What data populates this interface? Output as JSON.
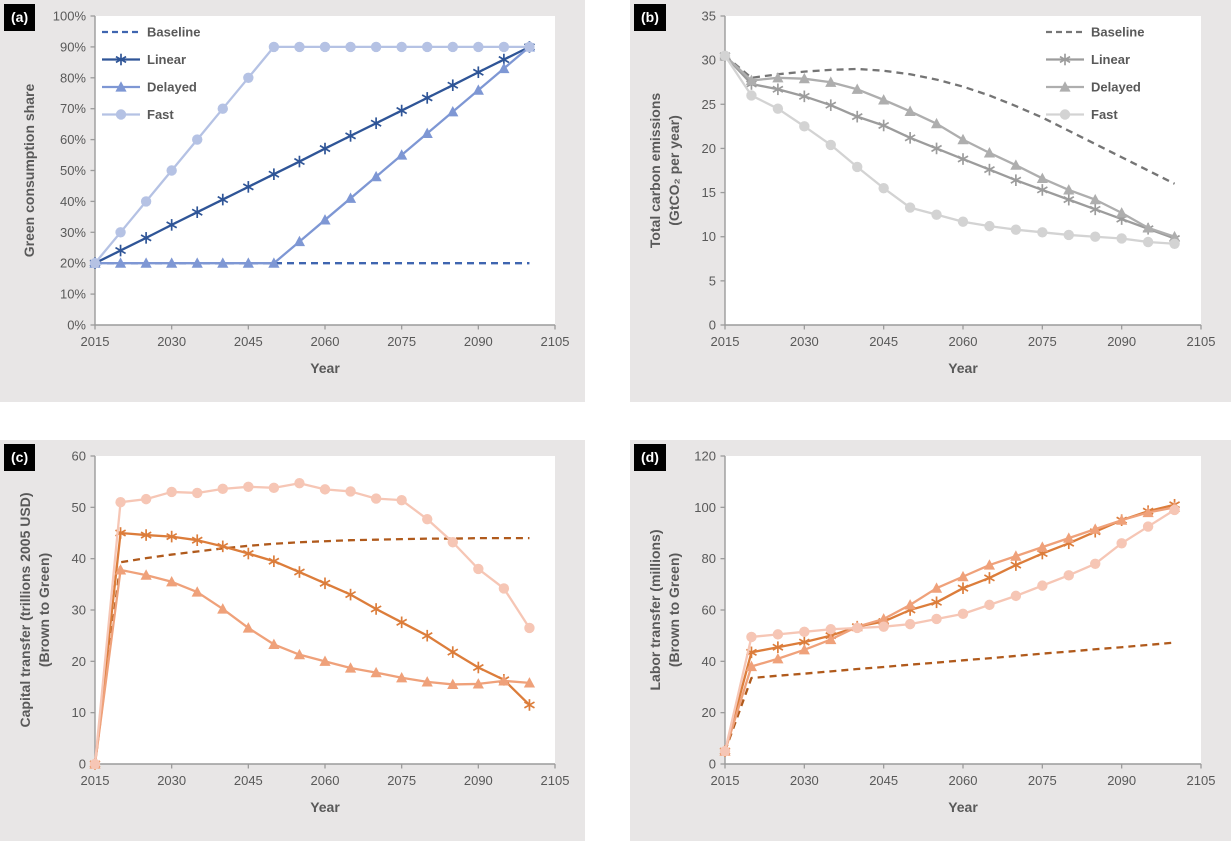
{
  "figure": {
    "background": "#ffffff",
    "panel_background": "#e8e6e6",
    "text_color": "#595959",
    "axis_color": "#9b9b9b",
    "badge_bg": "#000000",
    "badge_text_color": "#ffffff"
  },
  "chart_data": [
    {
      "panel_label": "(a)",
      "type": "line",
      "xlabel": "Year",
      "ylabel_lines": [
        "Green consumption share"
      ],
      "xlim": [
        2015,
        2105
      ],
      "xticks": [
        2015,
        2030,
        2045,
        2060,
        2075,
        2090,
        2105
      ],
      "ylim": [
        0,
        100
      ],
      "yticks": [
        0,
        10,
        20,
        30,
        40,
        50,
        60,
        70,
        80,
        90,
        100
      ],
      "ytick_labels": [
        "0%",
        "10%",
        "20%",
        "30%",
        "40%",
        "50%",
        "60%",
        "70%",
        "80%",
        "90%",
        "100%"
      ],
      "x": [
        2015,
        2020,
        2025,
        2030,
        2035,
        2040,
        2045,
        2050,
        2055,
        2060,
        2065,
        2070,
        2075,
        2080,
        2085,
        2090,
        2095,
        2100
      ],
      "grid": false,
      "legend": {
        "show": true,
        "position": "top-left"
      },
      "series": [
        {
          "name": "Baseline",
          "marker": "none",
          "dash": true,
          "color": "#3f65b0",
          "values": [
            20,
            20,
            20,
            20,
            20,
            20,
            20,
            20,
            20,
            20,
            20,
            20,
            20,
            20,
            20,
            20,
            20,
            20
          ]
        },
        {
          "name": "Linear",
          "marker": "asterisk",
          "dash": false,
          "color": "#2f5597",
          "values": [
            20,
            24.1,
            28.2,
            32.4,
            36.5,
            40.6,
            44.7,
            48.8,
            52.9,
            57.1,
            61.2,
            65.3,
            69.4,
            73.5,
            77.6,
            81.8,
            85.9,
            90
          ]
        },
        {
          "name": "Delayed",
          "marker": "triangle",
          "dash": false,
          "color": "#7e97d4",
          "values": [
            20,
            20,
            20,
            20,
            20,
            20,
            20,
            20,
            27,
            34,
            41,
            48,
            55,
            62,
            69,
            76,
            83,
            90
          ]
        },
        {
          "name": "Fast",
          "marker": "circle",
          "dash": false,
          "color": "#b5c2e4",
          "values": [
            20,
            30,
            40,
            50,
            60,
            70,
            80,
            90,
            90,
            90,
            90,
            90,
            90,
            90,
            90,
            90,
            90,
            90
          ]
        }
      ]
    },
    {
      "panel_label": "(b)",
      "type": "line",
      "xlabel": "Year",
      "ylabel_lines": [
        "Total carbon emissions",
        "(GtCO₂ per year)"
      ],
      "xlim": [
        2015,
        2105
      ],
      "xticks": [
        2015,
        2030,
        2045,
        2060,
        2075,
        2090,
        2105
      ],
      "ylim": [
        0,
        35
      ],
      "yticks": [
        0,
        5,
        10,
        15,
        20,
        25,
        30,
        35
      ],
      "ytick_labels": [
        "0",
        "5",
        "10",
        "15",
        "20",
        "25",
        "30",
        "35"
      ],
      "x": [
        2015,
        2020,
        2025,
        2030,
        2035,
        2040,
        2045,
        2050,
        2055,
        2060,
        2065,
        2070,
        2075,
        2080,
        2085,
        2090,
        2095,
        2100
      ],
      "grid": false,
      "legend": {
        "show": true,
        "position": "top-right"
      },
      "series": [
        {
          "name": "Baseline",
          "marker": "none",
          "dash": true,
          "color": "#757575",
          "values": [
            30.5,
            28,
            28.4,
            28.7,
            28.9,
            29,
            28.8,
            28.4,
            27.8,
            27,
            26,
            24.8,
            23.5,
            22,
            20.5,
            19,
            17.5,
            16
          ]
        },
        {
          "name": "Linear",
          "marker": "asterisk",
          "dash": false,
          "color": "#9c9c9c",
          "values": [
            30.5,
            27.3,
            26.7,
            25.9,
            24.9,
            23.6,
            22.6,
            21.2,
            20,
            18.8,
            17.6,
            16.4,
            15.3,
            14.2,
            13.1,
            12,
            10.9,
            9.8
          ]
        },
        {
          "name": "Delayed",
          "marker": "triangle",
          "dash": false,
          "color": "#aeaeae",
          "values": [
            30.5,
            27.7,
            28,
            27.9,
            27.5,
            26.7,
            25.5,
            24.2,
            22.8,
            21,
            19.5,
            18.1,
            16.6,
            15.3,
            14.2,
            12.7,
            11,
            10
          ]
        },
        {
          "name": "Fast",
          "marker": "circle",
          "dash": false,
          "color": "#d3d3d3",
          "values": [
            30.5,
            26,
            24.5,
            22.5,
            20.4,
            17.9,
            15.5,
            13.3,
            12.5,
            11.7,
            11.2,
            10.8,
            10.5,
            10.2,
            10,
            9.8,
            9.4,
            9.2
          ]
        }
      ]
    },
    {
      "panel_label": "(c)",
      "type": "line",
      "xlabel": "Year",
      "ylabel_lines": [
        "Capital transfer (trillions 2005 USD)",
        "(Brown to Green)"
      ],
      "xlim": [
        2015,
        2105
      ],
      "xticks": [
        2015,
        2030,
        2045,
        2060,
        2075,
        2090,
        2105
      ],
      "ylim": [
        0,
        60
      ],
      "yticks": [
        0,
        10,
        20,
        30,
        40,
        50,
        60
      ],
      "ytick_labels": [
        "0",
        "10",
        "20",
        "30",
        "40",
        "50",
        "60"
      ],
      "x": [
        2015,
        2020,
        2025,
        2030,
        2035,
        2040,
        2045,
        2050,
        2055,
        2060,
        2065,
        2070,
        2075,
        2080,
        2085,
        2090,
        2095,
        2100
      ],
      "grid": false,
      "legend": {
        "show": false,
        "position": "none"
      },
      "series": [
        {
          "name": "Baseline",
          "marker": "none",
          "dash": true,
          "color": "#b05a1c",
          "values": [
            0,
            39.3,
            40.1,
            40.8,
            41.4,
            42,
            42.5,
            42.9,
            43.2,
            43.4,
            43.6,
            43.7,
            43.8,
            43.9,
            43.9,
            44,
            44,
            44
          ]
        },
        {
          "name": "Linear",
          "marker": "asterisk",
          "dash": false,
          "color": "#dc7d3b",
          "values": [
            0,
            45,
            44.6,
            44.3,
            43.6,
            42.4,
            41,
            39.5,
            37.4,
            35.2,
            33,
            30.2,
            27.6,
            25,
            21.8,
            18.8,
            16.4,
            11.5
          ]
        },
        {
          "name": "Delayed",
          "marker": "triangle",
          "dash": false,
          "color": "#efa17a",
          "values": [
            0,
            37.8,
            36.8,
            35.5,
            33.5,
            30.2,
            26.5,
            23.3,
            21.3,
            20,
            18.7,
            17.8,
            16.8,
            16,
            15.5,
            15.6,
            16.2,
            15.8
          ]
        },
        {
          "name": "Fast",
          "marker": "circle",
          "dash": false,
          "color": "#f6c6b5",
          "values": [
            0,
            51,
            51.6,
            53,
            52.8,
            53.6,
            54,
            53.8,
            54.7,
            53.5,
            53.1,
            51.7,
            51.4,
            47.7,
            43.2,
            38,
            34.2,
            26.5
          ]
        }
      ]
    },
    {
      "panel_label": "(d)",
      "type": "line",
      "xlabel": "Year",
      "ylabel_lines": [
        "Labor transfer (millions)",
        "(Brown to Green)"
      ],
      "xlim": [
        2015,
        2105
      ],
      "xticks": [
        2015,
        2030,
        2045,
        2060,
        2075,
        2090,
        2105
      ],
      "ylim": [
        0,
        120
      ],
      "yticks": [
        0,
        20,
        40,
        60,
        80,
        100,
        120
      ],
      "ytick_labels": [
        "0",
        "20",
        "40",
        "60",
        "80",
        "100",
        "120"
      ],
      "x": [
        2015,
        2020,
        2025,
        2030,
        2035,
        2040,
        2045,
        2050,
        2055,
        2060,
        2065,
        2070,
        2075,
        2080,
        2085,
        2090,
        2095,
        2100
      ],
      "grid": false,
      "legend": {
        "show": false,
        "position": "none"
      },
      "series": [
        {
          "name": "Baseline",
          "marker": "none",
          "dash": true,
          "color": "#b05a1c",
          "values": [
            5,
            33.5,
            34.4,
            35.2,
            36.1,
            37,
            37.8,
            38.7,
            39.5,
            40.4,
            41.2,
            42.1,
            43,
            43.8,
            44.7,
            45.5,
            46.4,
            47.3
          ]
        },
        {
          "name": "Linear",
          "marker": "asterisk",
          "dash": false,
          "color": "#dc7d3b",
          "values": [
            5,
            43.5,
            45.5,
            47.5,
            50,
            53.5,
            55.5,
            60,
            63,
            68.5,
            72.5,
            77.5,
            82,
            86,
            90.5,
            95,
            98.5,
            101
          ]
        },
        {
          "name": "Delayed",
          "marker": "triangle",
          "dash": false,
          "color": "#efa17a",
          "values": [
            5,
            38,
            41,
            44.5,
            48.5,
            53.5,
            56.5,
            62,
            68.5,
            73,
            77.5,
            81,
            84.5,
            88,
            91.5,
            95,
            98,
            100
          ]
        },
        {
          "name": "Fast",
          "marker": "circle",
          "dash": false,
          "color": "#f6c6b5",
          "values": [
            5,
            49.5,
            50.5,
            51.5,
            52.5,
            53,
            53.5,
            54.5,
            56.5,
            58.5,
            62,
            65.5,
            69.5,
            73.5,
            78,
            86,
            92.5,
            99
          ]
        }
      ]
    }
  ]
}
